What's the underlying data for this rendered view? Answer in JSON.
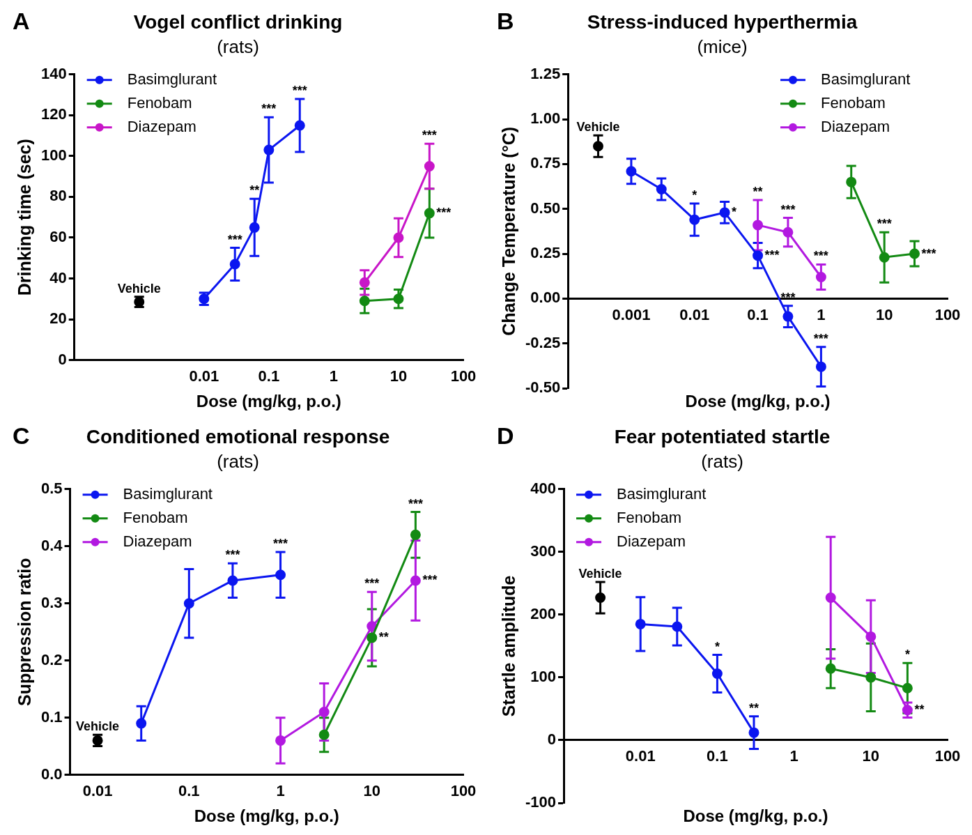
{
  "chart_data": [
    {
      "type": "line",
      "title": "Vogel conflict drinking",
      "subtitle": "(rats)",
      "xlabel": "Dose (mg/kg, p.o.)",
      "ylabel": "Drinking time (sec)",
      "log": "x",
      "xlim": [
        0.0001,
        100
      ],
      "xticks": [
        0.01,
        0.1,
        1,
        10,
        100
      ],
      "ylim": [
        0,
        140
      ],
      "yticks": [
        0,
        20,
        40,
        60,
        80,
        100,
        120,
        140
      ],
      "grid": false,
      "legend": "top left",
      "marker": "circle",
      "line_style": "solid",
      "series": [
        {
          "type": "scatter",
          "color": "#000000",
          "x": [
            0.001
          ],
          "values": [
            28.5
          ],
          "errors": [
            2.5
          ]
        },
        {
          "name": "Basimglurant",
          "color": "#0b16f0",
          "x": [
            0.01,
            0.03,
            0.06,
            0.1,
            0.3
          ],
          "values": [
            30,
            47,
            65,
            103,
            115
          ],
          "errors": [
            3,
            8,
            14,
            16,
            13
          ]
        },
        {
          "name": "Fenobam",
          "color": "#138a13",
          "x": [
            3,
            10,
            30
          ],
          "values": [
            29,
            30,
            72
          ],
          "errors": [
            6,
            4.5,
            12
          ]
        },
        {
          "name": "Diazepam",
          "color": "#c816c8",
          "x": [
            3,
            10,
            30
          ],
          "values": [
            38,
            60,
            95
          ],
          "errors": [
            6,
            9.5,
            11
          ]
        }
      ],
      "annotations": [
        "A",
        {
          "text": "Vehicle",
          "x": 0.001,
          "y": 28.5
        },
        {
          "text": "***",
          "x": 0.03,
          "y": 47
        },
        {
          "text": "**",
          "x": 0.06,
          "y": 65
        },
        {
          "text": "***",
          "x": 0.1,
          "y": 103
        },
        {
          "text": "***",
          "x": 0.3,
          "y": 115
        },
        {
          "text": "***",
          "x": 30,
          "y": 95
        },
        {
          "text": "***",
          "x": 30,
          "y": 72
        }
      ]
    },
    {
      "type": "line",
      "title": "Stress-induced hyperthermia",
      "subtitle": "(mice)",
      "xlabel": "Dose (mg/kg, p.o.)",
      "ylabel": "Change Temperature (°C)",
      "log": "x",
      "xlim": [
        0.0001,
        100
      ],
      "xticks": [
        0.001,
        0.01,
        0.1,
        1,
        10,
        100
      ],
      "ylim": [
        -0.5,
        1.25
      ],
      "yticks": [
        {
          "value": -0.5,
          "label": "-0.50"
        },
        {
          "value": -0.25,
          "label": "-0.25"
        },
        {
          "value": 0,
          "label": "0.00"
        },
        {
          "value": 0.25,
          "label": "0.25"
        },
        {
          "value": 0.5,
          "label": "0.50"
        },
        {
          "value": 0.75,
          "label": "0.75"
        },
        {
          "value": 1,
          "label": "1.00"
        },
        {
          "value": 1.25,
          "label": "1.25"
        }
      ],
      "grid": false,
      "legend": "top right",
      "marker": "circle",
      "line_style": "solid",
      "series": [
        {
          "type": "scatter",
          "color": "#000000",
          "x": [
            0.0003
          ],
          "values": [
            0.85
          ],
          "errors": [
            0.06
          ]
        },
        {
          "name": "Basimglurant",
          "color": "#0b16f0",
          "x": [
            0.001,
            0.003,
            0.01,
            0.03,
            0.1,
            0.3,
            1
          ],
          "values": [
            0.71,
            0.61,
            0.44,
            0.48,
            0.24,
            -0.1,
            -0.38
          ],
          "errors": [
            0.07,
            0.06,
            0.09,
            0.06,
            0.07,
            0.06,
            0.11
          ]
        },
        {
          "name": "Fenobam",
          "color": "#138a13",
          "x": [
            3,
            10,
            30
          ],
          "values": [
            0.65,
            0.23,
            0.25
          ],
          "errors": [
            0.09,
            0.14,
            0.07
          ]
        },
        {
          "name": "Diazepam",
          "color": "#b219e0",
          "x": [
            0.1,
            0.3,
            1
          ],
          "values": [
            0.41,
            0.37,
            0.12
          ],
          "errors": [
            0.14,
            0.08,
            0.07
          ]
        }
      ],
      "annotations": [
        "B",
        {
          "text": "Vehicle",
          "x": 0.0003,
          "y": 0.85
        },
        {
          "text": "*",
          "x": 0.01,
          "y": 0.44
        },
        {
          "text": "*",
          "x": 0.03,
          "y": 0.48
        },
        {
          "text": "**",
          "x": 0.1,
          "y": 0.41
        },
        {
          "text": "***",
          "x": 0.3,
          "y": 0.37
        },
        {
          "text": "***",
          "x": 1,
          "y": 0.12
        },
        {
          "text": "***",
          "x": 0.1,
          "y": 0.24
        },
        {
          "text": "***",
          "x": 0.3,
          "y": -0.1
        },
        {
          "text": "***",
          "x": 1,
          "y": -0.38
        },
        {
          "text": "***",
          "x": 10,
          "y": 0.23
        },
        {
          "text": "***",
          "x": 30,
          "y": 0.25
        }
      ]
    },
    {
      "type": "line",
      "title": "Conditioned emotional response",
      "subtitle": "(rats)",
      "xlabel": "Dose (mg/kg, p.o.)",
      "ylabel": "Suppression ratio",
      "log": "x",
      "xlim": [
        0.005,
        100
      ],
      "xticks": [
        0.01,
        0.1,
        1,
        10,
        100
      ],
      "ylim": [
        0,
        0.5
      ],
      "yticks": [
        {
          "value": 0,
          "label": "0.0"
        },
        {
          "value": 0.1,
          "label": "0.1"
        },
        {
          "value": 0.2,
          "label": "0.2"
        },
        {
          "value": 0.3,
          "label": "0.3"
        },
        {
          "value": 0.4,
          "label": "0.4"
        },
        {
          "value": 0.5,
          "label": "0.5"
        }
      ],
      "grid": false,
      "legend": "top left",
      "marker": "circle",
      "line_style": "solid",
      "series": [
        {
          "type": "scatter",
          "color": "#000000",
          "x": [
            0.01
          ],
          "values": [
            0.06
          ],
          "errors": [
            0.01
          ]
        },
        {
          "name": "Basimglurant",
          "color": "#0b16f0",
          "x": [
            0.03,
            0.1,
            0.3,
            1
          ],
          "values": [
            0.09,
            0.3,
            0.34,
            0.35
          ],
          "errors": [
            0.03,
            0.06,
            0.03,
            0.04
          ]
        },
        {
          "name": "Fenobam",
          "color": "#138a13",
          "x": [
            3,
            10,
            30
          ],
          "values": [
            0.07,
            0.24,
            0.42
          ],
          "errors": [
            0.03,
            0.05,
            0.04
          ]
        },
        {
          "name": "Diazepam",
          "color": "#b219e0",
          "x": [
            1,
            3,
            10,
            30
          ],
          "values": [
            0.06,
            0.11,
            0.26,
            0.34
          ],
          "errors": [
            0.04,
            0.05,
            0.06,
            0.07
          ]
        }
      ],
      "annotations": [
        "C",
        {
          "text": "Vehicle",
          "x": 0.01,
          "y": 0.06
        },
        {
          "text": "***",
          "x": 0.3,
          "y": 0.34
        },
        {
          "text": "***",
          "x": 1,
          "y": 0.35
        },
        {
          "text": "***",
          "x": 30,
          "y": 0.42
        },
        {
          "text": "***",
          "x": 30,
          "y": 0.34
        },
        {
          "text": "***",
          "x": 10,
          "y": 0.26
        },
        {
          "text": "**",
          "x": 10,
          "y": 0.24
        }
      ]
    },
    {
      "type": "line",
      "title": "Fear potentiated startle",
      "subtitle": "(rats)",
      "xlabel": "Dose (mg/kg, p.o.)",
      "ylabel": "Startle amplitude",
      "log": "x",
      "xlim": [
        0.001,
        100
      ],
      "xticks": [
        0.01,
        0.1,
        1,
        10,
        100
      ],
      "ylim": [
        -100,
        400
      ],
      "yticks": [
        -100,
        0,
        100,
        200,
        300,
        400
      ],
      "grid": false,
      "legend": "top left",
      "marker": "circle",
      "line_style": "solid",
      "series": [
        {
          "type": "scatter",
          "color": "#000000",
          "x": [
            0.003
          ],
          "values": [
            227
          ],
          "errors": [
            25
          ]
        },
        {
          "name": "Basimglurant",
          "color": "#0b16f0",
          "x": [
            0.01,
            0.03,
            0.1,
            0.3
          ],
          "values": [
            185,
            181,
            106,
            12
          ],
          "errors": [
            43,
            30,
            30,
            26
          ]
        },
        {
          "name": "Fenobam",
          "color": "#138a13",
          "x": [
            3,
            10,
            30
          ],
          "values": [
            114,
            100,
            83
          ],
          "errors": [
            31,
            54,
            40
          ]
        },
        {
          "name": "Diazepam",
          "color": "#b219e0",
          "x": [
            3,
            10,
            30
          ],
          "values": [
            227,
            165,
            48
          ],
          "errors": [
            97,
            58,
            12
          ]
        }
      ],
      "annotations": [
        "D",
        {
          "text": "Vehicle",
          "x": 0.003,
          "y": 227
        },
        {
          "text": "*",
          "x": 0.1,
          "y": 106
        },
        {
          "text": "**",
          "x": 0.3,
          "y": 12
        },
        {
          "text": "*",
          "x": 30,
          "y": 83
        },
        {
          "text": "**",
          "x": 30,
          "y": 48
        }
      ]
    }
  ]
}
